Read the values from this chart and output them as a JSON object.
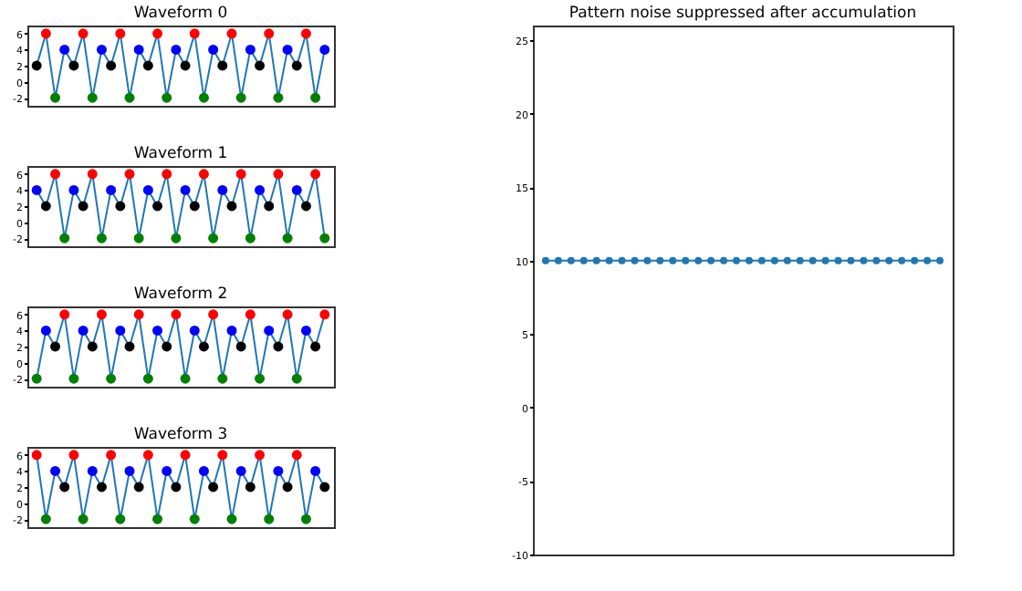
{
  "chart_data": [
    {
      "type": "line",
      "title": "Waveform 0",
      "categories": [
        null,
        null,
        null,
        null,
        null,
        null,
        null,
        null,
        null,
        null,
        null,
        null,
        null,
        null,
        null,
        null,
        null,
        null,
        null,
        null,
        null,
        null,
        null,
        null,
        null,
        null,
        null,
        null,
        null,
        null,
        null,
        null
      ],
      "ylim": [
        -3,
        7
      ],
      "yticks": [
        -2,
        0,
        2,
        4,
        6
      ],
      "marker": "circle",
      "series": [
        {
          "color": "#1f77b4",
          "values": [
            2,
            6,
            -2,
            4,
            2,
            6,
            -2,
            4,
            2,
            6,
            -2,
            4,
            2,
            6,
            -2,
            4,
            2,
            6,
            -2,
            4,
            2,
            6,
            -2,
            4,
            2,
            6,
            -2,
            4,
            2,
            6,
            -2,
            4
          ],
          "colors": [
            "#000000",
            "#ff0000",
            "#008000",
            "#0000ff",
            "#000000",
            "#ff0000",
            "#008000",
            "#0000ff",
            "#000000",
            "#ff0000",
            "#008000",
            "#0000ff",
            "#000000",
            "#ff0000",
            "#008000",
            "#0000ff",
            "#000000",
            "#ff0000",
            "#008000",
            "#0000ff",
            "#000000",
            "#ff0000",
            "#008000",
            "#0000ff",
            "#000000",
            "#ff0000",
            "#008000",
            "#0000ff",
            "#000000",
            "#ff0000",
            "#008000",
            "#0000ff"
          ]
        }
      ]
    },
    {
      "type": "line",
      "title": "Waveform 1",
      "categories": [
        null,
        null,
        null,
        null,
        null,
        null,
        null,
        null,
        null,
        null,
        null,
        null,
        null,
        null,
        null,
        null,
        null,
        null,
        null,
        null,
        null,
        null,
        null,
        null,
        null,
        null,
        null,
        null,
        null,
        null,
        null,
        null
      ],
      "ylim": [
        -3,
        7
      ],
      "yticks": [
        -2,
        0,
        2,
        4,
        6
      ],
      "marker": "circle",
      "series": [
        {
          "color": "#1f77b4",
          "values": [
            4,
            2,
            6,
            -2,
            4,
            2,
            6,
            -2,
            4,
            2,
            6,
            -2,
            4,
            2,
            6,
            -2,
            4,
            2,
            6,
            -2,
            4,
            2,
            6,
            -2,
            4,
            2,
            6,
            -2,
            4,
            2,
            6,
            -2
          ],
          "colors": [
            "#0000ff",
            "#000000",
            "#ff0000",
            "#008000",
            "#0000ff",
            "#000000",
            "#ff0000",
            "#008000",
            "#0000ff",
            "#000000",
            "#ff0000",
            "#008000",
            "#0000ff",
            "#000000",
            "#ff0000",
            "#008000",
            "#0000ff",
            "#000000",
            "#ff0000",
            "#008000",
            "#0000ff",
            "#000000",
            "#ff0000",
            "#008000",
            "#0000ff",
            "#000000",
            "#ff0000",
            "#008000",
            "#0000ff",
            "#000000",
            "#ff0000",
            "#008000"
          ]
        }
      ]
    },
    {
      "type": "line",
      "title": "Waveform 2",
      "categories": [
        null,
        null,
        null,
        null,
        null,
        null,
        null,
        null,
        null,
        null,
        null,
        null,
        null,
        null,
        null,
        null,
        null,
        null,
        null,
        null,
        null,
        null,
        null,
        null,
        null,
        null,
        null,
        null,
        null,
        null,
        null,
        null
      ],
      "ylim": [
        -3,
        7
      ],
      "yticks": [
        -2,
        0,
        2,
        4,
        6
      ],
      "marker": "circle",
      "series": [
        {
          "color": "#1f77b4",
          "values": [
            -2,
            4,
            2,
            6,
            -2,
            4,
            2,
            6,
            -2,
            4,
            2,
            6,
            -2,
            4,
            2,
            6,
            -2,
            4,
            2,
            6,
            -2,
            4,
            2,
            6,
            -2,
            4,
            2,
            6,
            -2,
            4,
            2,
            6
          ],
          "colors": [
            "#008000",
            "#0000ff",
            "#000000",
            "#ff0000",
            "#008000",
            "#0000ff",
            "#000000",
            "#ff0000",
            "#008000",
            "#0000ff",
            "#000000",
            "#ff0000",
            "#008000",
            "#0000ff",
            "#000000",
            "#ff0000",
            "#008000",
            "#0000ff",
            "#000000",
            "#ff0000",
            "#008000",
            "#0000ff",
            "#000000",
            "#ff0000",
            "#008000",
            "#0000ff",
            "#000000",
            "#ff0000",
            "#008000",
            "#0000ff",
            "#000000",
            "#ff0000"
          ]
        }
      ]
    },
    {
      "type": "line",
      "title": "Waveform 3",
      "categories": [
        null,
        null,
        null,
        null,
        null,
        null,
        null,
        null,
        null,
        null,
        null,
        null,
        null,
        null,
        null,
        null,
        null,
        null,
        null,
        null,
        null,
        null,
        null,
        null,
        null,
        null,
        null,
        null,
        null,
        null,
        null,
        null
      ],
      "ylim": [
        -3,
        7
      ],
      "yticks": [
        -2,
        0,
        2,
        4,
        6
      ],
      "marker": "circle",
      "series": [
        {
          "color": "#1f77b4",
          "values": [
            6,
            -2,
            4,
            2,
            6,
            -2,
            4,
            2,
            6,
            -2,
            4,
            2,
            6,
            -2,
            4,
            2,
            6,
            -2,
            4,
            2,
            6,
            -2,
            4,
            2,
            6,
            -2,
            4,
            2,
            6,
            -2,
            4,
            2
          ],
          "colors": [
            "#ff0000",
            "#008000",
            "#0000ff",
            "#000000",
            "#ff0000",
            "#008000",
            "#0000ff",
            "#000000",
            "#ff0000",
            "#008000",
            "#0000ff",
            "#000000",
            "#ff0000",
            "#008000",
            "#0000ff",
            "#000000",
            "#ff0000",
            "#008000",
            "#0000ff",
            "#000000",
            "#ff0000",
            "#008000",
            "#0000ff",
            "#000000",
            "#ff0000",
            "#008000",
            "#0000ff",
            "#000000",
            "#ff0000",
            "#008000",
            "#0000ff",
            "#000000"
          ]
        }
      ]
    },
    {
      "type": "line",
      "title": "Pattern noise suppressed after accumulation",
      "categories": [
        null,
        null,
        null,
        null,
        null,
        null,
        null,
        null,
        null,
        null,
        null,
        null,
        null,
        null,
        null,
        null,
        null,
        null,
        null,
        null,
        null,
        null,
        null,
        null,
        null,
        null,
        null,
        null,
        null,
        null,
        null,
        null
      ],
      "ylim": [
        -10,
        26
      ],
      "yticks": [
        -10,
        -5,
        0,
        5,
        10,
        15,
        20,
        25
      ],
      "marker": "circle",
      "series": [
        {
          "color": "#1f77b4",
          "values": [
            10,
            10,
            10,
            10,
            10,
            10,
            10,
            10,
            10,
            10,
            10,
            10,
            10,
            10,
            10,
            10,
            10,
            10,
            10,
            10,
            10,
            10,
            10,
            10,
            10,
            10,
            10,
            10,
            10,
            10,
            10,
            10
          ]
        }
      ]
    }
  ]
}
